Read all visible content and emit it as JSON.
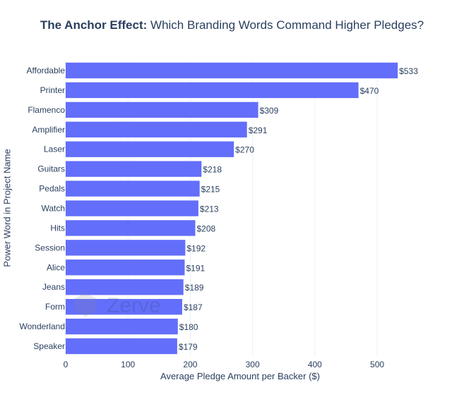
{
  "title": {
    "bold": "The Anchor Effect:",
    "rest": " Which Branding Words Command Higher Pledges?"
  },
  "watermark": "Zerve",
  "chart_data": {
    "type": "bar",
    "orientation": "horizontal",
    "categories": [
      "Affordable",
      "Printer",
      "Flamenco",
      "Amplifier",
      "Laser",
      "Guitars",
      "Pedals",
      "Watch",
      "Hits",
      "Session",
      "Alice",
      "Jeans",
      "Form",
      "Wonderland",
      "Speaker"
    ],
    "values": [
      533,
      470,
      309,
      291,
      270,
      218,
      215,
      213,
      208,
      192,
      191,
      189,
      187,
      180,
      179
    ],
    "data_labels": [
      "$533",
      "$470",
      "$309",
      "$291",
      "$270",
      "$218",
      "$215",
      "$213",
      "$208",
      "$192",
      "$191",
      "$189",
      "$187",
      "$180",
      "$179"
    ],
    "xlabel": "Average Pledge Amount per Backer ($)",
    "ylabel": "Power Word in Project Name",
    "xlim": [
      0,
      560
    ],
    "xticks": [
      0,
      100,
      200,
      300,
      400,
      500
    ],
    "grid": true,
    "bar_color": "#636efa"
  }
}
